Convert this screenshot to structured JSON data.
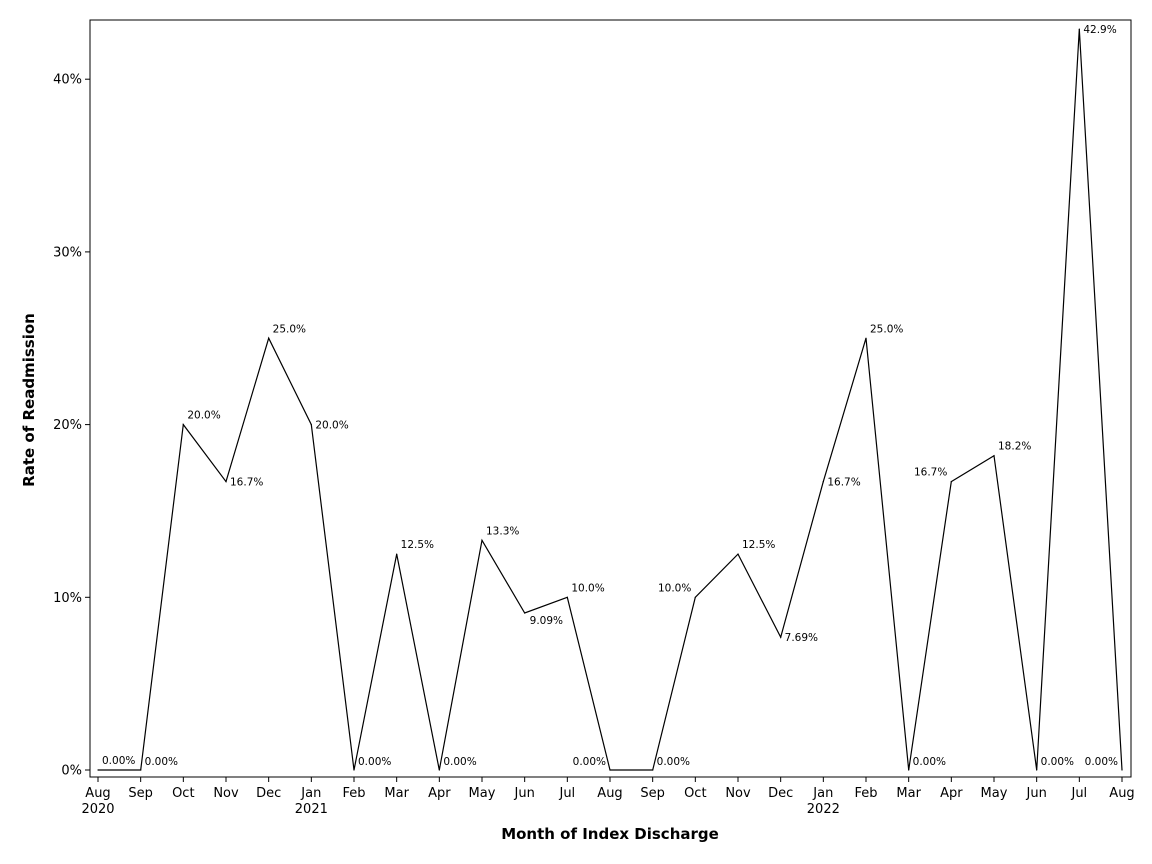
{
  "chart_data": {
    "type": "line",
    "title": "",
    "xlabel": "Month of Index Discharge",
    "ylabel": "Rate of Readmission",
    "ylim": [
      0,
      43
    ],
    "y_ticks": [
      {
        "value": 0,
        "label": "0%"
      },
      {
        "value": 10,
        "label": "10%"
      },
      {
        "value": 20,
        "label": "20%"
      },
      {
        "value": 30,
        "label": "30%"
      },
      {
        "value": 40,
        "label": "40%"
      }
    ],
    "grid": false,
    "legend": "none",
    "line_color": "#000000",
    "categories": [
      "Aug 2020",
      "Sep 2020",
      "Oct 2020",
      "Nov 2020",
      "Dec 2020",
      "Jan 2021",
      "Feb 2021",
      "Mar 2021",
      "Apr 2021",
      "May 2021",
      "Jun 2021",
      "Jul 2021",
      "Aug 2021",
      "Sep 2021",
      "Oct 2021",
      "Nov 2021",
      "Dec 2021",
      "Jan 2022",
      "Feb 2022",
      "Mar 2022",
      "Apr 2022",
      "May 2022",
      "Jun 2022",
      "Jul 2022",
      "Aug 2022"
    ],
    "x_tick_labels": [
      {
        "month": "Aug",
        "year": "2020"
      },
      {
        "month": "Sep",
        "year": ""
      },
      {
        "month": "Oct",
        "year": ""
      },
      {
        "month": "Nov",
        "year": ""
      },
      {
        "month": "Dec",
        "year": ""
      },
      {
        "month": "Jan",
        "year": "2021"
      },
      {
        "month": "Feb",
        "year": ""
      },
      {
        "month": "Mar",
        "year": ""
      },
      {
        "month": "Apr",
        "year": ""
      },
      {
        "month": "May",
        "year": ""
      },
      {
        "month": "Jun",
        "year": ""
      },
      {
        "month": "Jul",
        "year": ""
      },
      {
        "month": "Aug",
        "year": ""
      },
      {
        "month": "Sep",
        "year": ""
      },
      {
        "month": "Oct",
        "year": ""
      },
      {
        "month": "Nov",
        "year": ""
      },
      {
        "month": "Dec",
        "year": ""
      },
      {
        "month": "Jan",
        "year": "2022"
      },
      {
        "month": "Feb",
        "year": ""
      },
      {
        "month": "Mar",
        "year": ""
      },
      {
        "month": "Apr",
        "year": ""
      },
      {
        "month": "May",
        "year": ""
      },
      {
        "month": "Jun",
        "year": ""
      },
      {
        "month": "Jul",
        "year": ""
      },
      {
        "month": "Aug",
        "year": ""
      }
    ],
    "values": [
      0,
      0,
      20.0,
      16.7,
      25.0,
      20.0,
      0,
      12.5,
      0,
      13.3,
      9.09,
      10.0,
      0,
      0,
      10.0,
      12.5,
      7.69,
      16.7,
      25.0,
      0,
      16.7,
      18.2,
      0,
      42.9,
      0
    ],
    "data_labels": [
      "0.00%",
      "0.00%",
      "20.0%",
      "16.7%",
      "25.0%",
      "20.0%",
      "0.00%",
      "12.5%",
      "0.00%",
      "13.3%",
      "9.09%",
      "10.0%",
      "0.00%",
      "0.00%",
      "10.0%",
      "12.5%",
      "7.69%",
      "16.7%",
      "25.0%",
      "0.00%",
      "16.7%",
      "18.2%",
      "0.00%",
      "42.9%",
      "0.00%"
    ],
    "data_label_positions": [
      "above-right",
      "right",
      "above-right",
      "right",
      "above-right",
      "right",
      "right",
      "above-right",
      "right",
      "above-right",
      "below-right",
      "above-right",
      "left",
      "right",
      "above-left",
      "above-right",
      "right",
      "right",
      "above-right",
      "right",
      "above-left",
      "above-right",
      "right",
      "right",
      "left"
    ]
  }
}
